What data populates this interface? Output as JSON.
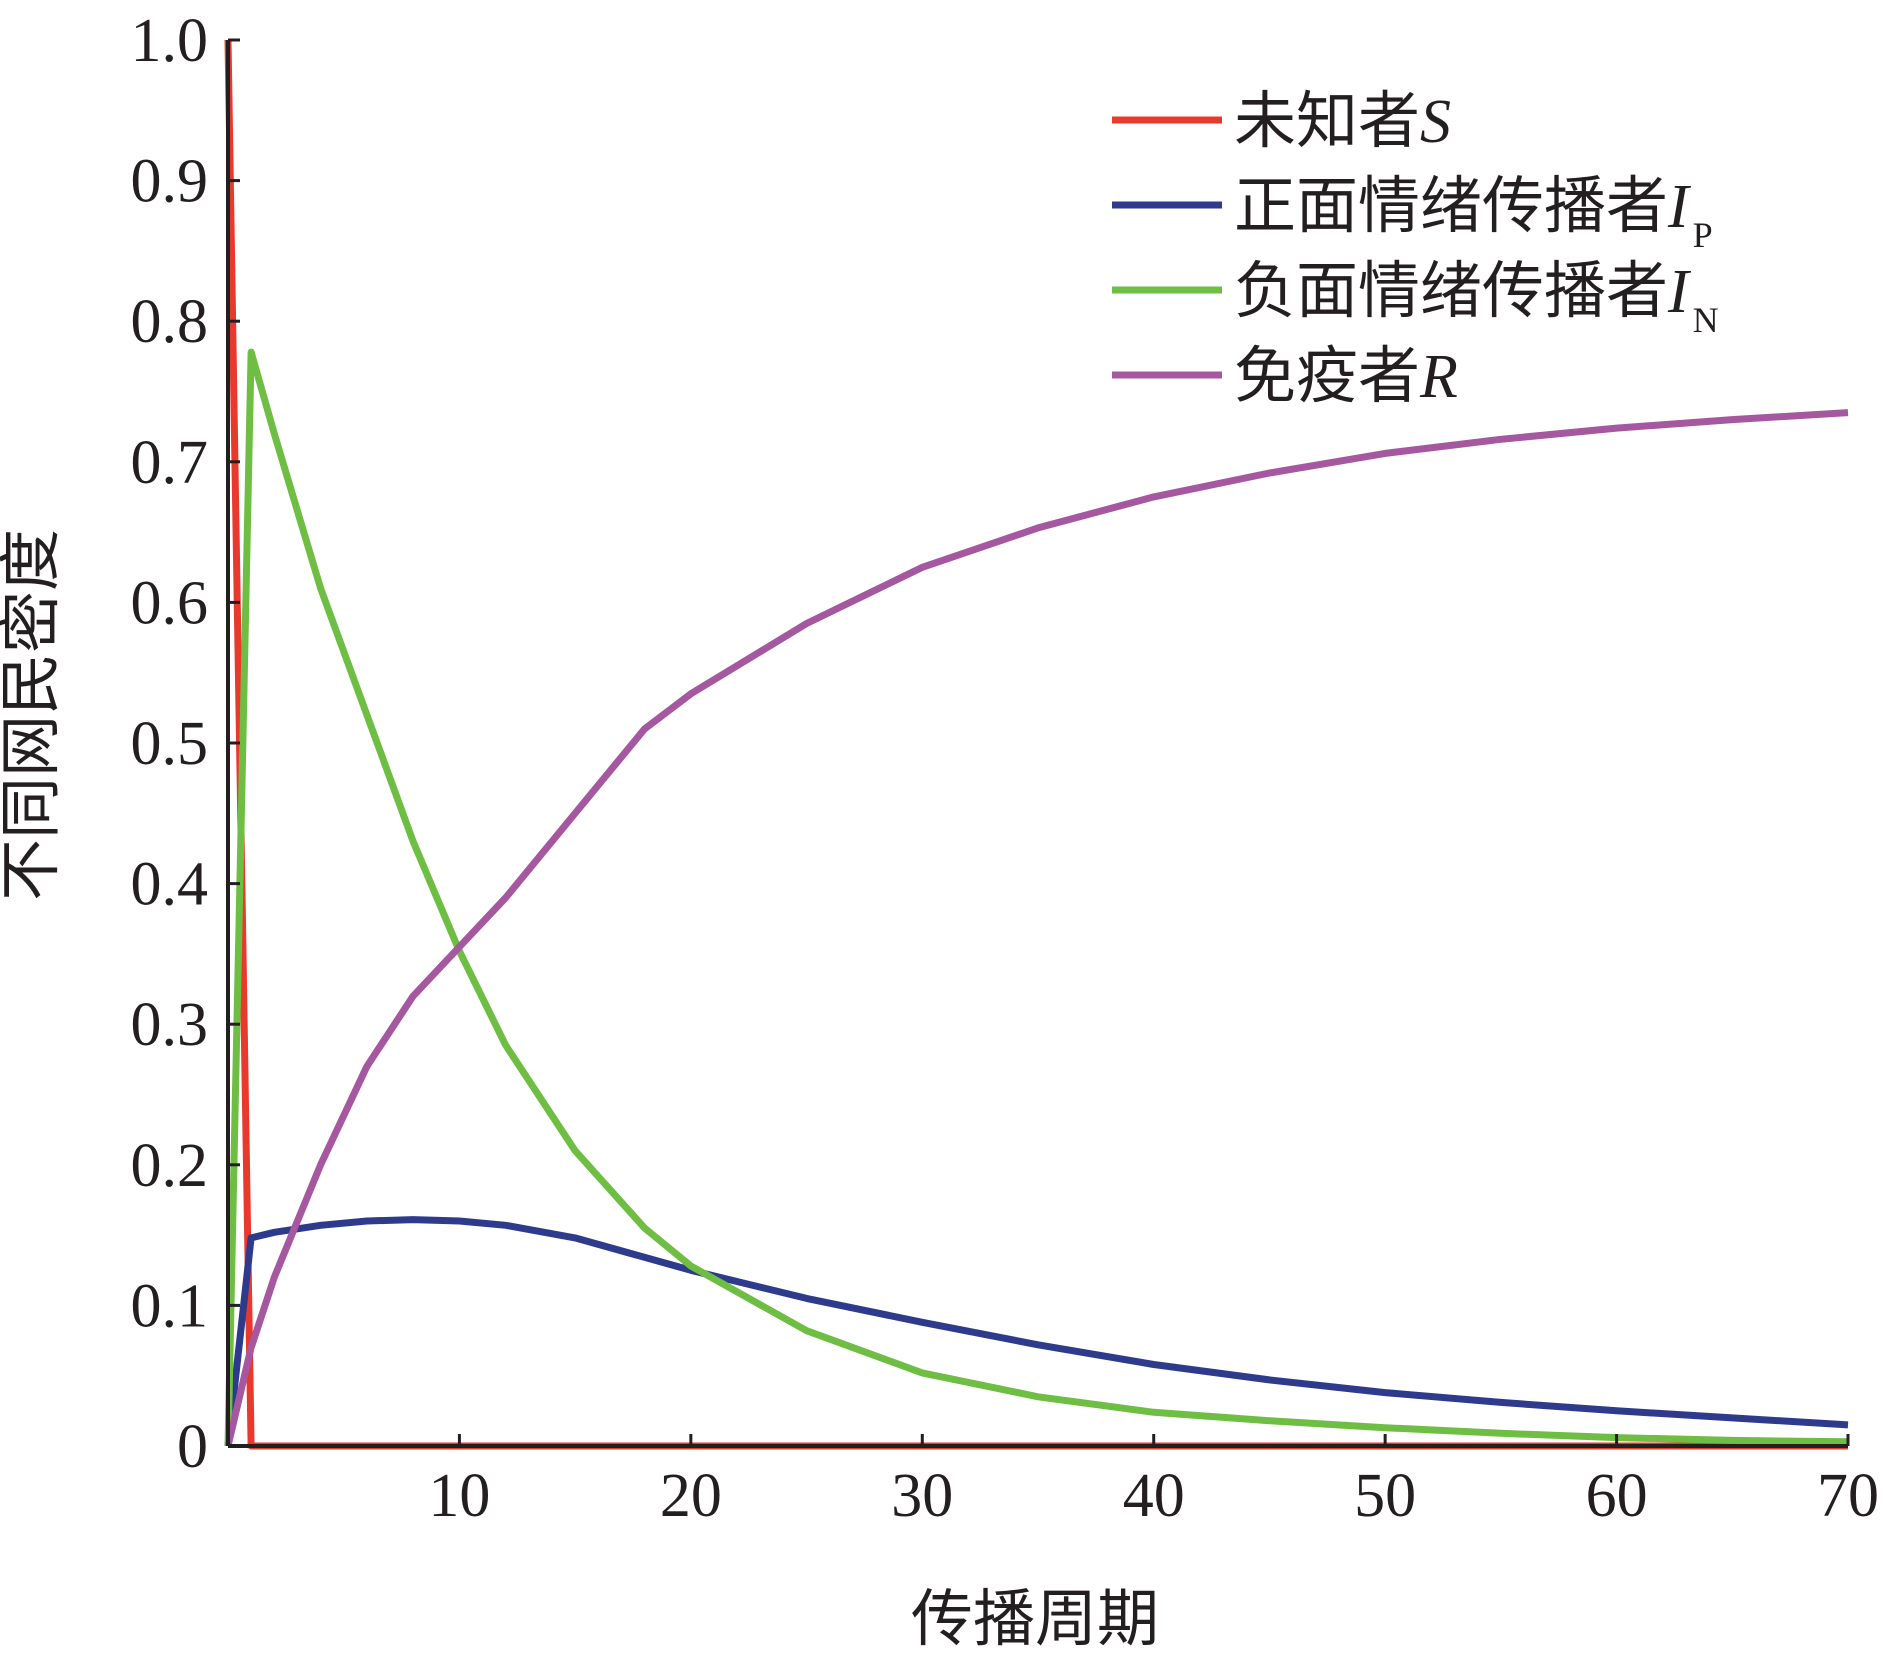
{
  "chart_data": {
    "type": "line",
    "title": "",
    "xlabel": "传播周期",
    "ylabel": "不同网民密度",
    "xlim": [
      0,
      70
    ],
    "ylim": [
      0,
      1
    ],
    "xticks": [
      10,
      20,
      30,
      40,
      50,
      60,
      70
    ],
    "xtick_labels": [
      "10",
      "20",
      "30",
      "40",
      "50",
      "60",
      "70"
    ],
    "yticks": [
      0,
      0.1,
      0.2,
      0.3,
      0.4,
      0.5,
      0.6,
      0.7,
      0.8,
      0.9,
      1.0
    ],
    "ytick_labels": [
      "0",
      "0.1",
      "0.2",
      "0.3",
      "0.4",
      "0.5",
      "0.6",
      "0.7",
      "0.8",
      "0.9",
      "1.0"
    ],
    "grid": false,
    "legend_position": "top-right",
    "series": [
      {
        "name": "未知者S",
        "label_text": "未知者",
        "symbol": "S",
        "subscript": "",
        "color": "#e8392c",
        "x": [
          0,
          1,
          1.1,
          5,
          10,
          20,
          30,
          40,
          50,
          60,
          70
        ],
        "y": [
          1.0,
          0.0,
          0.0,
          0.0,
          0.0,
          0.0,
          0.0,
          0.0,
          0.0,
          0.0,
          0.0
        ]
      },
      {
        "name": "正面情绪传播者IP",
        "label_text": "正面情绪传播者",
        "symbol": "I",
        "subscript": "P",
        "color": "#2e3a8c",
        "x": [
          0,
          1,
          2,
          4,
          6,
          8,
          10,
          12,
          15,
          20,
          25,
          30,
          35,
          40,
          45,
          50,
          55,
          60,
          65,
          70
        ],
        "y": [
          0,
          0.148,
          0.152,
          0.157,
          0.16,
          0.161,
          0.16,
          0.157,
          0.148,
          0.125,
          0.105,
          0.088,
          0.072,
          0.058,
          0.047,
          0.038,
          0.031,
          0.025,
          0.02,
          0.015
        ]
      },
      {
        "name": "负面情绪传播者IN",
        "label_text": "负面情绪传播者",
        "symbol": "I",
        "subscript": "N",
        "color": "#6fbe44",
        "x": [
          0,
          1,
          2,
          4,
          6,
          8,
          10,
          12,
          15,
          18,
          20,
          25,
          30,
          35,
          40,
          45,
          50,
          55,
          60,
          65,
          70
        ],
        "y": [
          0,
          0.778,
          0.72,
          0.61,
          0.52,
          0.43,
          0.352,
          0.285,
          0.21,
          0.155,
          0.128,
          0.082,
          0.052,
          0.035,
          0.024,
          0.018,
          0.013,
          0.009,
          0.006,
          0.004,
          0.003
        ]
      },
      {
        "name": "免疫者R",
        "label_text": "免疫者",
        "symbol": "R",
        "subscript": "",
        "color": "#a557a0",
        "x": [
          0,
          1,
          2,
          4,
          6,
          8,
          10,
          12,
          15,
          18,
          20,
          25,
          30,
          35,
          40,
          45,
          50,
          55,
          60,
          65,
          70
        ],
        "y": [
          0,
          0.07,
          0.12,
          0.2,
          0.27,
          0.32,
          0.355,
          0.39,
          0.45,
          0.51,
          0.535,
          0.585,
          0.625,
          0.653,
          0.675,
          0.692,
          0.706,
          0.716,
          0.724,
          0.73,
          0.735
        ]
      }
    ]
  }
}
